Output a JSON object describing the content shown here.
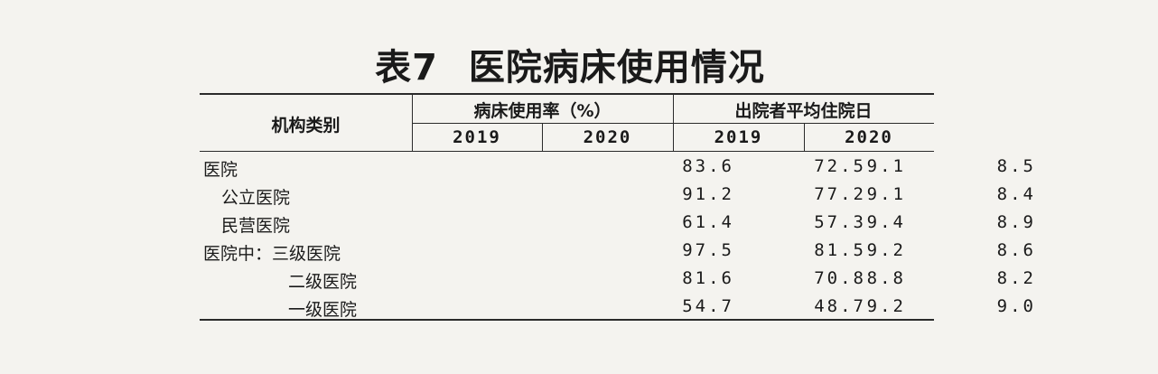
{
  "title": {
    "number": "表7",
    "text": "医院病床使用情况"
  },
  "header": {
    "category": "机构类别",
    "group1": "病床使用率（%）",
    "group2": "出院者平均住院日",
    "years": [
      "2019",
      "2020",
      "2019",
      "2020"
    ]
  },
  "rows": [
    {
      "label": "医院",
      "values": [
        "83.6",
        "72.5",
        "9.1",
        "8.5"
      ]
    },
    {
      "label": "公立医院",
      "values": [
        "91.2",
        "77.2",
        "9.1",
        "8.4"
      ]
    },
    {
      "label": "民营医院",
      "values": [
        "61.4",
        "57.3",
        "9.4",
        "8.9"
      ]
    },
    {
      "label": "医院中：三级医院",
      "values": [
        "97.5",
        "81.5",
        "9.2",
        "8.6"
      ]
    },
    {
      "label": "二级医院",
      "values": [
        "81.6",
        "70.8",
        "8.8",
        "8.2"
      ]
    },
    {
      "label": "一级医院",
      "values": [
        "54.7",
        "48.7",
        "9.2",
        "9.0"
      ]
    }
  ]
}
